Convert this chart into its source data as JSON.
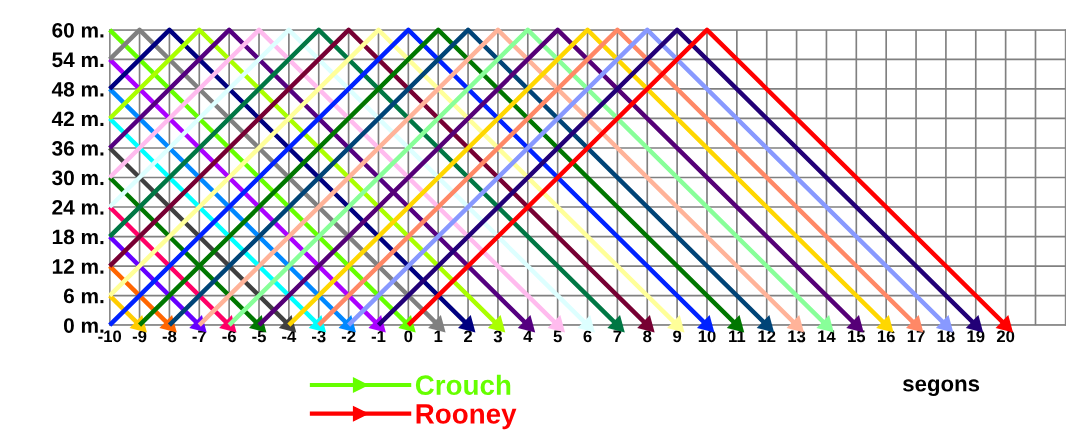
{
  "chart_data": {
    "type": "line",
    "xlabel": "segons",
    "series": [
      {
        "color": "#ffcc00",
        "x": [
          -10,
          -9
        ],
        "values": [
          6,
          0
        ]
      },
      {
        "color": "#ff6600",
        "x": [
          -10,
          -8
        ],
        "values": [
          12,
          0
        ]
      },
      {
        "color": "#6600ff",
        "x": [
          -10,
          -7
        ],
        "values": [
          18,
          0
        ]
      },
      {
        "color": "#ff0066",
        "x": [
          -10,
          -6
        ],
        "values": [
          24,
          0
        ]
      },
      {
        "color": "#007700",
        "x": [
          -10,
          -5
        ],
        "values": [
          30,
          0
        ]
      },
      {
        "color": "#404040",
        "x": [
          -10,
          -4
        ],
        "values": [
          36,
          0
        ]
      },
      {
        "color": "#00ffff",
        "x": [
          -10,
          -3
        ],
        "values": [
          42,
          0
        ]
      },
      {
        "color": "#0088ff",
        "x": [
          -10,
          -2
        ],
        "values": [
          48,
          0
        ]
      },
      {
        "color": "#aa00ff",
        "x": [
          -10,
          -1
        ],
        "values": [
          54,
          0
        ]
      },
      {
        "name": "Crouch",
        "color": "#66ff00",
        "x": [
          -10,
          0
        ],
        "values": [
          60,
          0
        ]
      },
      {
        "color": "#808080",
        "x": [
          -10,
          -9,
          1
        ],
        "values": [
          54,
          60,
          0
        ]
      },
      {
        "color": "#000080",
        "x": [
          -10,
          -8,
          2
        ],
        "values": [
          48,
          60,
          0
        ]
      },
      {
        "color": "#aaff00",
        "x": [
          -10,
          -7,
          3
        ],
        "values": [
          42,
          60,
          0
        ]
      },
      {
        "color": "#550080",
        "x": [
          -10,
          -6,
          4
        ],
        "values": [
          36,
          60,
          0
        ]
      },
      {
        "color": "#ffbbee",
        "x": [
          -10,
          -5,
          5
        ],
        "values": [
          30,
          60,
          0
        ]
      },
      {
        "color": "#ddffff",
        "x": [
          -10,
          -4,
          6
        ],
        "values": [
          24,
          60,
          0
        ]
      },
      {
        "color": "#007744",
        "x": [
          -10,
          -3,
          7
        ],
        "values": [
          18,
          60,
          0
        ]
      },
      {
        "color": "#770033",
        "x": [
          -10,
          -2,
          8
        ],
        "values": [
          12,
          60,
          0
        ]
      },
      {
        "color": "#ffff99",
        "x": [
          -10,
          -1,
          9
        ],
        "values": [
          6,
          60,
          0
        ]
      },
      {
        "color": "#0022ff",
        "x": [
          -10,
          0,
          10
        ],
        "values": [
          0,
          60,
          0
        ]
      },
      {
        "color": "#007700",
        "x": [
          -9,
          1,
          11
        ],
        "values": [
          0,
          60,
          0
        ]
      },
      {
        "color": "#004477",
        "x": [
          -8,
          2,
          12
        ],
        "values": [
          0,
          60,
          0
        ]
      },
      {
        "color": "#ffb399",
        "x": [
          -7,
          3,
          13
        ],
        "values": [
          0,
          60,
          0
        ]
      },
      {
        "color": "#88ff99",
        "x": [
          -6,
          4,
          14
        ],
        "values": [
          0,
          60,
          0
        ]
      },
      {
        "color": "#550077",
        "x": [
          -5,
          5,
          15
        ],
        "values": [
          0,
          60,
          0
        ]
      },
      {
        "color": "#ffd700",
        "x": [
          -4,
          6,
          16
        ],
        "values": [
          0,
          60,
          0
        ]
      },
      {
        "color": "#ff8866",
        "x": [
          -3,
          7,
          17
        ],
        "values": [
          0,
          60,
          0
        ]
      },
      {
        "color": "#8899ff",
        "x": [
          -2,
          8,
          18
        ],
        "values": [
          0,
          60,
          0
        ]
      },
      {
        "color": "#220077",
        "x": [
          -1,
          9,
          19
        ],
        "values": [
          0,
          60,
          0
        ]
      },
      {
        "name": "Rooney",
        "color": "#ff0000",
        "x": [
          0,
          10,
          20
        ],
        "values": [
          0,
          60,
          0
        ]
      }
    ],
    "xlim": [
      -10,
      22
    ],
    "ylim": [
      0,
      60
    ],
    "xticks": [
      -10,
      -9,
      -8,
      -7,
      -6,
      -5,
      -4,
      -3,
      -2,
      -1,
      0,
      1,
      2,
      3,
      4,
      5,
      6,
      7,
      8,
      9,
      10,
      11,
      12,
      13,
      14,
      15,
      16,
      17,
      18,
      19,
      20,
      {
        "value": 21,
        "label": null
      }
    ],
    "yticks": [
      {
        "value": 0,
        "label": "0 m."
      },
      {
        "value": 6,
        "label": "6 m."
      },
      {
        "value": 12,
        "label": "12 m."
      },
      {
        "value": 18,
        "label": "18 m."
      },
      {
        "value": 24,
        "label": "24 m."
      },
      {
        "value": 30,
        "label": "30 m."
      },
      {
        "value": 36,
        "label": "36 m."
      },
      {
        "value": 42,
        "label": "42 m."
      },
      {
        "value": 48,
        "label": "48 m."
      },
      {
        "value": 54,
        "label": "54 m."
      },
      {
        "value": 60,
        "label": "60 m."
      }
    ],
    "grid": true,
    "legend": "bottom left"
  }
}
